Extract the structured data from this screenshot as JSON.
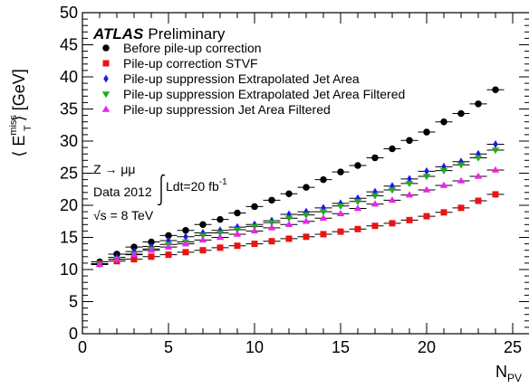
{
  "chart_data": {
    "type": "scatter",
    "xlabel_main": "N",
    "xlabel_sub": "PV",
    "ylabel_left": "⟨ E",
    "ylabel_sup": "miss",
    "ylabel_sub": "T",
    "ylabel_right": "⟩ [GeV]",
    "xlim": [
      0,
      26
    ],
    "ylim": [
      0,
      50
    ],
    "x_ticks": [
      0,
      5,
      10,
      15,
      20,
      25
    ],
    "x_ticks_labels": [
      "0",
      "5",
      "10",
      "15",
      "20",
      "25"
    ],
    "y_ticks": [
      0,
      5,
      10,
      15,
      20,
      25,
      30,
      35,
      40,
      45,
      50
    ],
    "y_ticks_labels": [
      "0",
      "5",
      "10",
      "15",
      "20",
      "25",
      "30",
      "35",
      "40",
      "45",
      "50"
    ],
    "grid": false,
    "legend_position": "top-left",
    "experiment": "ATLAS",
    "experiment_status": "Preliminary",
    "process": "Z → μμ",
    "dataset": "Data 2012",
    "luminosity": "Ldt=20 fb",
    "luminosity_exp": "-1",
    "energy_sqrt": "√s = 8 TeV",
    "series": [
      {
        "name": "Before pile-up correction",
        "color": "#000000",
        "marker": "circle",
        "x": [
          1,
          2,
          3,
          4,
          5,
          6,
          7,
          8,
          9,
          10,
          11,
          12,
          13,
          14,
          15,
          16,
          17,
          18,
          19,
          20,
          21,
          22,
          23,
          24
        ],
        "y": [
          11.2,
          12.4,
          13.5,
          14.3,
          15.3,
          16.1,
          17.0,
          17.8,
          18.8,
          19.8,
          20.8,
          21.8,
          22.8,
          24.0,
          25.2,
          26.2,
          27.4,
          28.8,
          30.1,
          31.4,
          33.0,
          34.3,
          35.8,
          38.0
        ]
      },
      {
        "name": "Pile-up correction STVF",
        "color": "#ee1111",
        "marker": "square",
        "x": [
          1,
          2,
          3,
          4,
          5,
          6,
          7,
          8,
          9,
          10,
          11,
          12,
          13,
          14,
          15,
          16,
          17,
          18,
          19,
          20,
          21,
          22,
          23,
          24
        ],
        "y": [
          10.9,
          11.3,
          11.6,
          12.0,
          12.3,
          12.7,
          13.0,
          13.4,
          13.7,
          14.0,
          14.4,
          14.8,
          15.1,
          15.5,
          15.9,
          16.3,
          16.8,
          17.2,
          17.7,
          18.3,
          18.9,
          19.6,
          20.7,
          21.7
        ]
      },
      {
        "name": "Pile-up suppression Extrapolated Jet Area",
        "color": "#1a1aee",
        "marker": "diamond",
        "x": [
          1,
          2,
          3,
          4,
          5,
          6,
          7,
          8,
          9,
          10,
          11,
          12,
          13,
          14,
          15,
          16,
          17,
          18,
          19,
          20,
          21,
          22,
          23,
          24
        ],
        "y": [
          10.9,
          11.9,
          12.8,
          13.6,
          14.5,
          15.1,
          15.7,
          16.1,
          16.6,
          17.0,
          17.6,
          18.6,
          19.0,
          19.6,
          20.3,
          21.1,
          22.1,
          23.0,
          24.1,
          25.3,
          26.0,
          26.8,
          28.0,
          29.5
        ]
      },
      {
        "name": "Pile-up suppression Extrapolated Jet Area Filtered",
        "color": "#22aa22",
        "marker": "triangle-down",
        "x": [
          1,
          2,
          3,
          4,
          5,
          6,
          7,
          8,
          9,
          10,
          11,
          12,
          13,
          14,
          15,
          16,
          17,
          18,
          19,
          20,
          21,
          22,
          23,
          24
        ],
        "y": [
          10.8,
          11.6,
          12.4,
          13.2,
          13.9,
          14.3,
          15.3,
          15.7,
          16.2,
          16.7,
          17.3,
          18.0,
          18.5,
          19.0,
          19.9,
          20.6,
          21.5,
          22.4,
          23.4,
          24.5,
          25.4,
          26.3,
          27.4,
          28.6
        ]
      },
      {
        "name": "Pile-up suppression Jet Area Filtered",
        "color": "#ee22ee",
        "marker": "triangle-up",
        "x": [
          1,
          2,
          3,
          4,
          5,
          6,
          7,
          8,
          9,
          10,
          11,
          12,
          13,
          14,
          15,
          16,
          17,
          18,
          19,
          20,
          21,
          22,
          23,
          24
        ],
        "y": [
          10.8,
          11.6,
          12.3,
          13.0,
          13.5,
          14.0,
          14.6,
          15.0,
          15.5,
          16.0,
          16.5,
          17.0,
          17.5,
          18.0,
          18.7,
          19.5,
          20.2,
          20.8,
          21.6,
          22.4,
          23.1,
          23.8,
          24.5,
          25.5
        ]
      }
    ]
  }
}
